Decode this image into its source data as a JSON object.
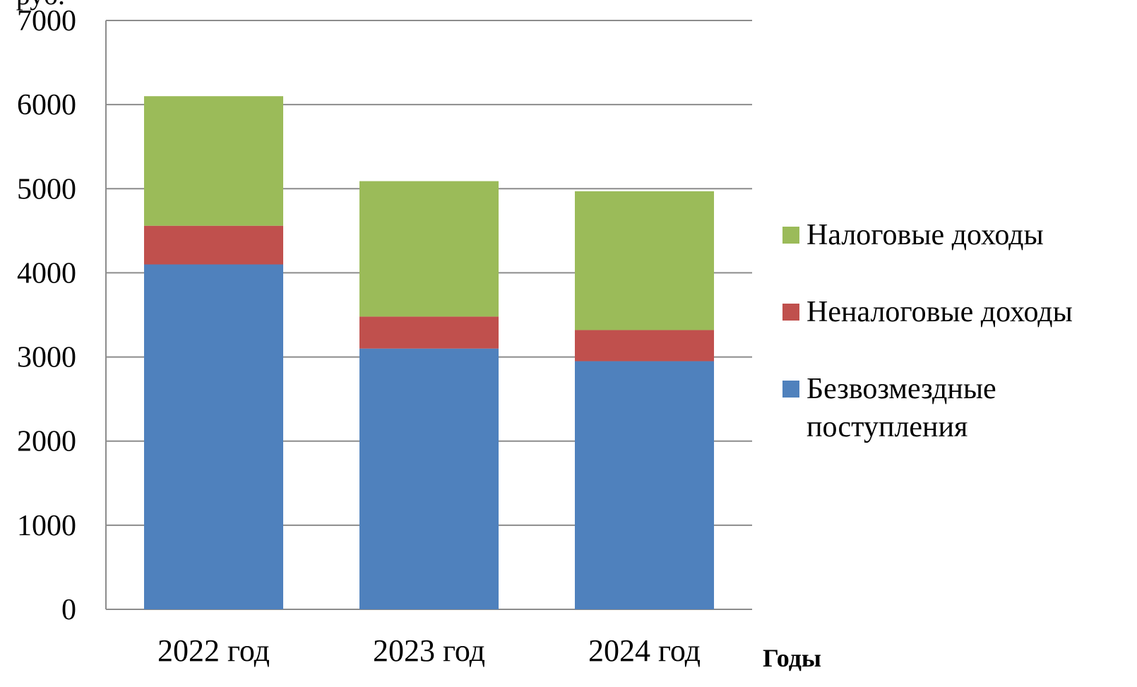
{
  "chart_data": {
    "type": "stacked_bar",
    "y_label": "руб.",
    "x_label": "Годы",
    "categories": [
      "2022 год",
      "2023 год",
      "2024 год"
    ],
    "series": [
      {
        "name": "Безвозмездные поступления",
        "color": "#4f81bd",
        "values": [
          4100,
          3100,
          2950
        ]
      },
      {
        "name": "Неналоговые доходы",
        "color": "#c0504d",
        "values": [
          460,
          380,
          370
        ]
      },
      {
        "name": "Налоговые доходы",
        "color": "#9bbb59",
        "values": [
          1540,
          1610,
          1650
        ]
      }
    ],
    "ylim": [
      0,
      7000
    ],
    "yticks": [
      0,
      1000,
      2000,
      3000,
      4000,
      5000,
      6000,
      7000
    ],
    "grid": true,
    "legend": "right"
  }
}
